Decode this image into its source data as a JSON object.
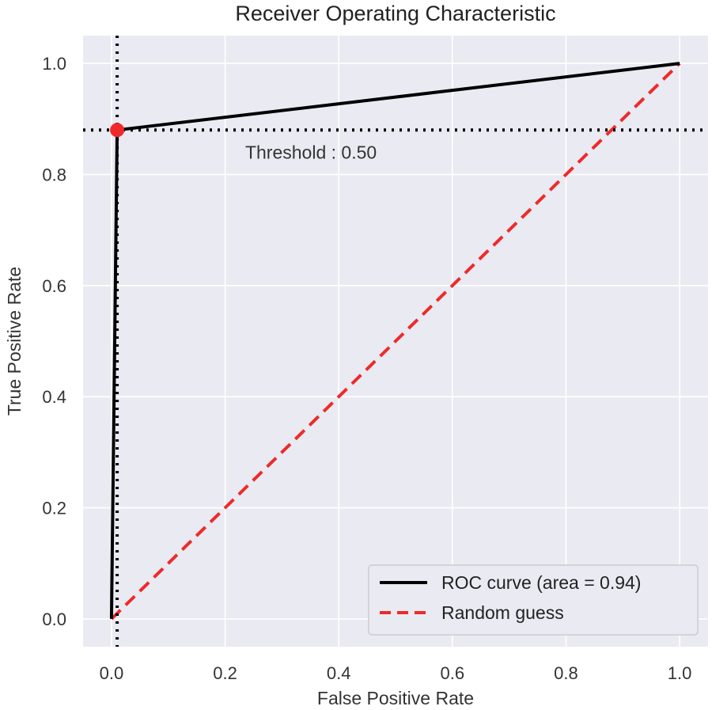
{
  "chart_data": {
    "type": "line",
    "title": "Receiver Operating Characteristic",
    "xlabel": "False Positive Rate",
    "ylabel": "True Positive Rate",
    "xlim": [
      -0.05,
      1.05
    ],
    "ylim": [
      -0.05,
      1.05
    ],
    "xticks": [
      "0.0",
      "0.2",
      "0.4",
      "0.6",
      "0.8",
      "1.0"
    ],
    "yticks": [
      "0.0",
      "0.2",
      "0.4",
      "0.6",
      "0.8",
      "1.0"
    ],
    "grid": true,
    "legend_position": "bottom-right",
    "series": [
      {
        "name": "ROC curve (area = 0.94)",
        "style": "solid",
        "color": "#000000",
        "x": [
          0.0,
          0.0,
          0.01,
          1.0
        ],
        "y": [
          0.0,
          0.0,
          0.88,
          1.0
        ]
      },
      {
        "name": "Random guess",
        "style": "dashed",
        "color": "#ee2a2a",
        "x": [
          0.0,
          1.0
        ],
        "y": [
          0.0,
          1.0
        ]
      }
    ],
    "threshold_point": {
      "x": 0.01,
      "y": 0.88,
      "color": "#ee2a2a"
    },
    "threshold_label": "Threshold : 0.50",
    "crosshair_style": "dotted"
  }
}
